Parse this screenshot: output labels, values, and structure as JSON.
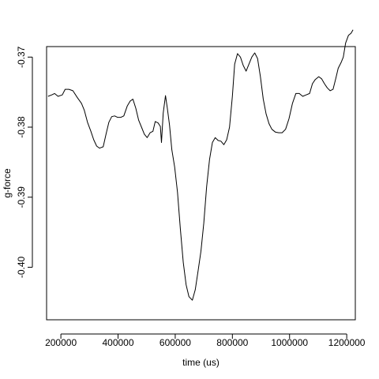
{
  "chart_data": {
    "type": "line",
    "title": "",
    "xlabel": "time (us)",
    "ylabel": "g-force",
    "xlim": [
      150000,
      1230000
    ],
    "ylim": [
      -0.4075,
      -0.3685
    ],
    "x_ticks": [
      200000,
      400000,
      600000,
      800000,
      1000000,
      1200000
    ],
    "x_tick_labels": [
      "200000",
      "400000",
      "600000",
      "800000",
      "1000000",
      "1200000"
    ],
    "y_ticks": [
      -0.4,
      -0.39,
      -0.38,
      -0.37
    ],
    "y_tick_labels": [
      "-0.40",
      "-0.39",
      "-0.38",
      "-0.37"
    ],
    "grid": false,
    "series": [
      {
        "values": [
          [
            155000,
            -0.3756
          ],
          [
            168000,
            -0.3754
          ],
          [
            178000,
            -0.3752
          ],
          [
            190000,
            -0.3756
          ],
          [
            205000,
            -0.3754
          ],
          [
            215000,
            -0.3746
          ],
          [
            228000,
            -0.3746
          ],
          [
            242000,
            -0.3748
          ],
          [
            258000,
            -0.3758
          ],
          [
            272000,
            -0.3766
          ],
          [
            282000,
            -0.3776
          ],
          [
            293000,
            -0.3793
          ],
          [
            305000,
            -0.3806
          ],
          [
            315000,
            -0.3818
          ],
          [
            325000,
            -0.3827
          ],
          [
            335000,
            -0.383
          ],
          [
            348000,
            -0.3828
          ],
          [
            358000,
            -0.381
          ],
          [
            368000,
            -0.3793
          ],
          [
            378000,
            -0.3785
          ],
          [
            388000,
            -0.3784
          ],
          [
            398000,
            -0.3786
          ],
          [
            410000,
            -0.3786
          ],
          [
            420000,
            -0.3784
          ],
          [
            432000,
            -0.377
          ],
          [
            442000,
            -0.3763
          ],
          [
            452000,
            -0.376
          ],
          [
            462000,
            -0.3773
          ],
          [
            472000,
            -0.379
          ],
          [
            482000,
            -0.38
          ],
          [
            492000,
            -0.381
          ],
          [
            502000,
            -0.3815
          ],
          [
            512000,
            -0.3808
          ],
          [
            522000,
            -0.3806
          ],
          [
            530000,
            -0.3792
          ],
          [
            540000,
            -0.3794
          ],
          [
            548000,
            -0.3799
          ],
          [
            552000,
            -0.3822
          ],
          [
            558000,
            -0.378
          ],
          [
            566000,
            -0.3755
          ],
          [
            572000,
            -0.3772
          ],
          [
            580000,
            -0.3797
          ],
          [
            588000,
            -0.3832
          ],
          [
            598000,
            -0.3857
          ],
          [
            608000,
            -0.3893
          ],
          [
            618000,
            -0.3945
          ],
          [
            628000,
            -0.3993
          ],
          [
            638000,
            -0.4025
          ],
          [
            648000,
            -0.4042
          ],
          [
            660000,
            -0.4047
          ],
          [
            670000,
            -0.4032
          ],
          [
            680000,
            -0.4005
          ],
          [
            690000,
            -0.3977
          ],
          [
            700000,
            -0.3937
          ],
          [
            710000,
            -0.3885
          ],
          [
            720000,
            -0.3846
          ],
          [
            730000,
            -0.3822
          ],
          [
            740000,
            -0.3815
          ],
          [
            750000,
            -0.3819
          ],
          [
            760000,
            -0.382
          ],
          [
            770000,
            -0.3825
          ],
          [
            780000,
            -0.3818
          ],
          [
            790000,
            -0.38
          ],
          [
            800000,
            -0.3756
          ],
          [
            808000,
            -0.371
          ],
          [
            818000,
            -0.3695
          ],
          [
            828000,
            -0.37
          ],
          [
            838000,
            -0.3712
          ],
          [
            848000,
            -0.372
          ],
          [
            858000,
            -0.371
          ],
          [
            868000,
            -0.37
          ],
          [
            878000,
            -0.3694
          ],
          [
            888000,
            -0.3702
          ],
          [
            898000,
            -0.3728
          ],
          [
            908000,
            -0.376
          ],
          [
            918000,
            -0.3781
          ],
          [
            928000,
            -0.3795
          ],
          [
            938000,
            -0.3803
          ],
          [
            950000,
            -0.3807
          ],
          [
            962000,
            -0.3808
          ],
          [
            974000,
            -0.3808
          ],
          [
            986000,
            -0.3803
          ],
          [
            998000,
            -0.3788
          ],
          [
            1010000,
            -0.3766
          ],
          [
            1022000,
            -0.3752
          ],
          [
            1034000,
            -0.3752
          ],
          [
            1046000,
            -0.3756
          ],
          [
            1058000,
            -0.3754
          ],
          [
            1070000,
            -0.3752
          ],
          [
            1080000,
            -0.3738
          ],
          [
            1090000,
            -0.3732
          ],
          [
            1102000,
            -0.3728
          ],
          [
            1112000,
            -0.3731
          ],
          [
            1122000,
            -0.3738
          ],
          [
            1132000,
            -0.3744
          ],
          [
            1142000,
            -0.3748
          ],
          [
            1152000,
            -0.3746
          ],
          [
            1162000,
            -0.373
          ],
          [
            1170000,
            -0.3716
          ],
          [
            1180000,
            -0.3708
          ],
          [
            1188000,
            -0.37
          ],
          [
            1196000,
            -0.368
          ],
          [
            1206000,
            -0.3669
          ],
          [
            1215000,
            -0.3666
          ],
          [
            1222000,
            -0.3661
          ]
        ]
      }
    ]
  }
}
